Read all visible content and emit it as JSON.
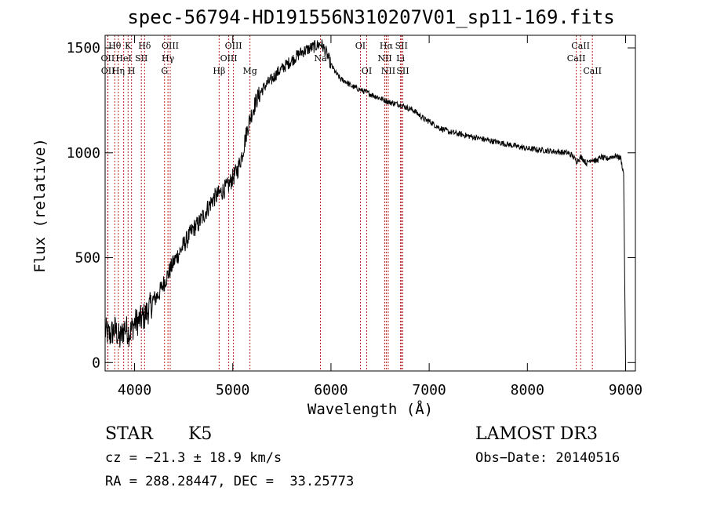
{
  "chart_data": {
    "type": "line",
    "title": "spec-56794-HD191556N310207V01_sp11-169.fits",
    "xlabel": "Wavelength (Å)",
    "ylabel": "Flux (relative)",
    "xlim": [
      3700,
      9100
    ],
    "ylim": [
      -40,
      1560
    ],
    "x_ticks": [
      4000,
      5000,
      6000,
      7000,
      8000,
      9000
    ],
    "y_ticks": [
      0,
      500,
      1000,
      1500
    ],
    "series": [
      {
        "name": "spectrum",
        "x": [
          3700,
          3750,
          3800,
          3850,
          3900,
          3950,
          4000,
          4050,
          4100,
          4150,
          4200,
          4250,
          4300,
          4350,
          4400,
          4450,
          4500,
          4550,
          4600,
          4650,
          4700,
          4750,
          4800,
          4850,
          4900,
          4950,
          5000,
          5050,
          5100,
          5150,
          5200,
          5250,
          5300,
          5350,
          5400,
          5450,
          5500,
          5550,
          5600,
          5650,
          5700,
          5750,
          5800,
          5850,
          5900,
          5950,
          6000,
          6050,
          6100,
          6150,
          6200,
          6250,
          6300,
          6350,
          6400,
          6450,
          6500,
          6550,
          6600,
          6650,
          6700,
          6750,
          6800,
          6850,
          6900,
          6950,
          7000,
          7100,
          7200,
          7300,
          7400,
          7500,
          7600,
          7700,
          7800,
          7900,
          8000,
          8100,
          8200,
          8300,
          8400,
          8450,
          8500,
          8550,
          8600,
          8650,
          8700,
          8750,
          8800,
          8850,
          8900,
          8950,
          8980,
          9000
        ],
        "values": [
          150,
          130,
          160,
          110,
          170,
          140,
          190,
          200,
          220,
          260,
          300,
          330,
          380,
          430,
          480,
          520,
          560,
          600,
          640,
          660,
          700,
          740,
          780,
          800,
          820,
          840,
          880,
          920,
          1000,
          1120,
          1200,
          1260,
          1300,
          1330,
          1350,
          1380,
          1400,
          1420,
          1440,
          1460,
          1480,
          1490,
          1500,
          1510,
          1520,
          1480,
          1420,
          1380,
          1350,
          1340,
          1320,
          1310,
          1300,
          1290,
          1280,
          1270,
          1260,
          1250,
          1240,
          1235,
          1230,
          1220,
          1210,
          1200,
          1180,
          1160,
          1150,
          1120,
          1100,
          1090,
          1080,
          1070,
          1060,
          1050,
          1040,
          1030,
          1020,
          1015,
          1010,
          1005,
          1000,
          990,
          960,
          980,
          950,
          970,
          960,
          980,
          970,
          980,
          985,
          975,
          900,
          -20
        ]
      }
    ],
    "spectral_lines": [
      {
        "label": "Hθ",
        "wavelength": 3798,
        "row": 1
      },
      {
        "label": "OII",
        "wavelength": 3727,
        "row": 2
      },
      {
        "label": "OII",
        "wavelength": 3729,
        "row": 3
      },
      {
        "label": "K",
        "wavelength": 3934,
        "row": 1
      },
      {
        "label": "HeI",
        "wavelength": 3889,
        "row": 2
      },
      {
        "label": "Hη",
        "wavelength": 3835,
        "row": 3
      },
      {
        "label": "Hδ",
        "wavelength": 4102,
        "row": 1
      },
      {
        "label": "SII",
        "wavelength": 4069,
        "row": 2
      },
      {
        "label": "H",
        "wavelength": 3969,
        "row": 3
      },
      {
        "label": "OIII",
        "wavelength": 4363,
        "row": 1
      },
      {
        "label": "Hγ",
        "wavelength": 4340,
        "row": 2
      },
      {
        "label": "G",
        "wavelength": 4305,
        "row": 3
      },
      {
        "label": "OIII",
        "wavelength": 5007,
        "row": 1
      },
      {
        "label": "OIII",
        "wavelength": 4959,
        "row": 2
      },
      {
        "label": "Hβ",
        "wavelength": 4861,
        "row": 3
      },
      {
        "label": "Mg",
        "wavelength": 5175,
        "row": 3
      },
      {
        "label": "Na",
        "wavelength": 5893,
        "row": 2
      },
      {
        "label": "OI",
        "wavelength": 6300,
        "row": 1
      },
      {
        "label": "OI",
        "wavelength": 6364,
        "row": 3
      },
      {
        "label": "Hα",
        "wavelength": 6563,
        "row": 1
      },
      {
        "label": "SII",
        "wavelength": 6717,
        "row": 1
      },
      {
        "label": "NII",
        "wavelength": 6548,
        "row": 2
      },
      {
        "label": "Li",
        "wavelength": 6708,
        "row": 2
      },
      {
        "label": "NII",
        "wavelength": 6583,
        "row": 3
      },
      {
        "label": "SII",
        "wavelength": 6731,
        "row": 3
      },
      {
        "label": "CaII",
        "wavelength": 8542,
        "row": 1
      },
      {
        "label": "CaII",
        "wavelength": 8498,
        "row": 2
      },
      {
        "label": "CaII",
        "wavelength": 8662,
        "row": 3
      }
    ]
  },
  "info": {
    "object_class": "STAR",
    "subclass": "K5",
    "survey": "LAMOST DR3",
    "redshift": "cz = −21.3 ± 18.9 km/s",
    "obs_date": "Obs−Date: 20140516",
    "coords": "RA = 288.28447, DEC =  33.25773"
  },
  "colors": {
    "line_marker": "#b22222",
    "spectrum": "#000000",
    "axis": "#000000"
  }
}
